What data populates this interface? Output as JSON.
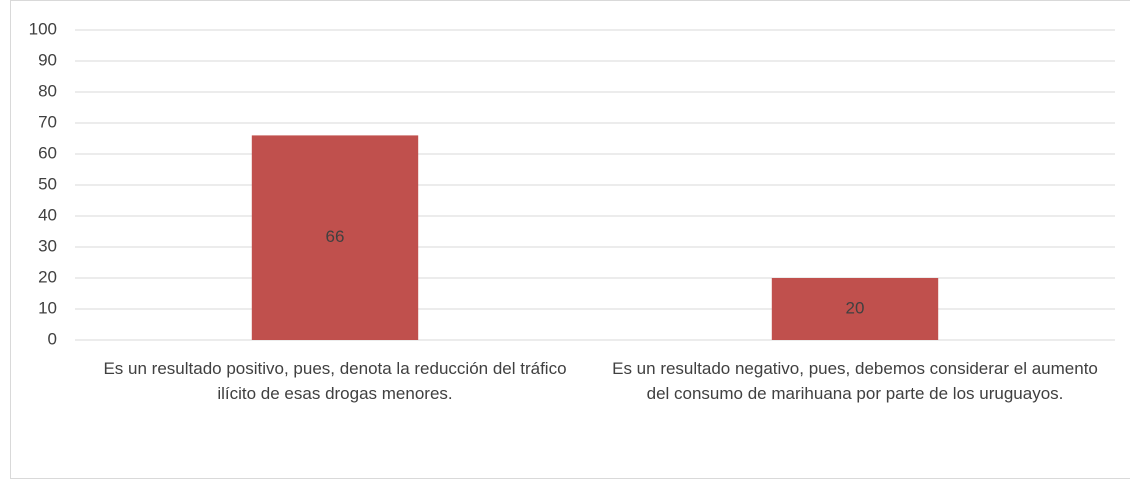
{
  "chart_data": {
    "type": "bar",
    "categories": [
      "Es un resultado positivo, pues, denota la reducción del tráfico ilícito de esas drogas menores.",
      "Es un resultado negativo, pues, debemos considerar el aumento del consumo de marihuana por parte de los uruguayos."
    ],
    "values": [
      66,
      20
    ],
    "color": "#c0504d",
    "ylim": [
      0,
      100
    ],
    "yticks": [
      0,
      10,
      20,
      30,
      40,
      50,
      60,
      70,
      80,
      90,
      100
    ],
    "grid": true
  }
}
